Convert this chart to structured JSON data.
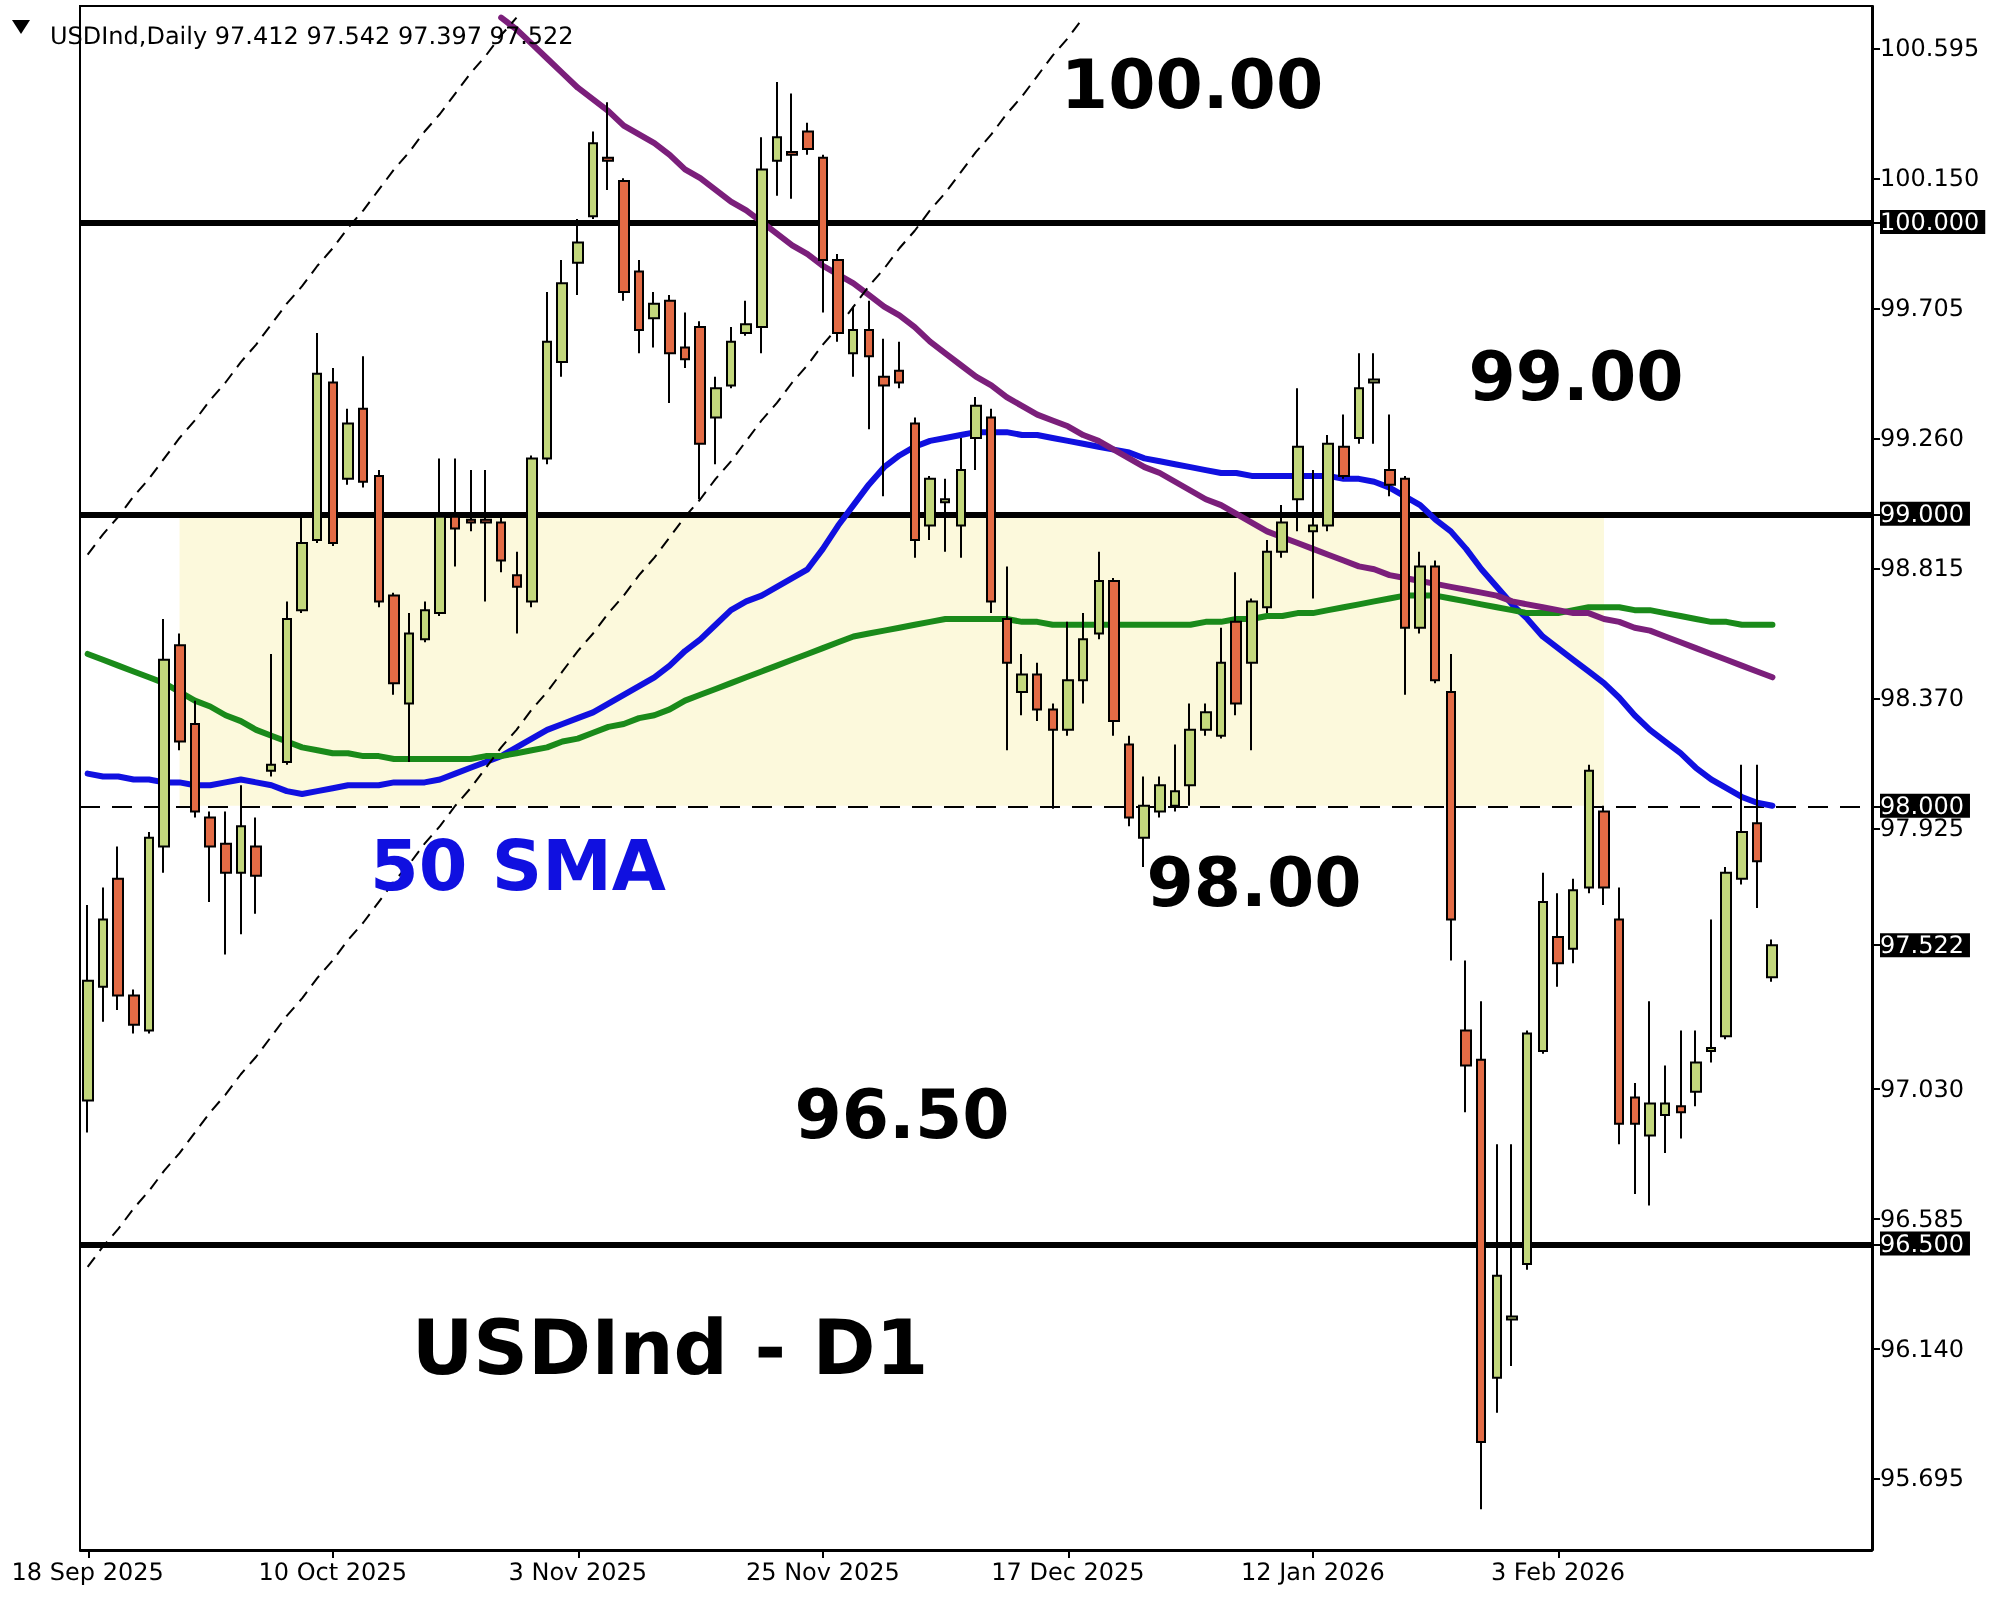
{
  "chart_data": {
    "type": "candlestick",
    "title": "USDInd,Daily 97.412 97.542 97.397 97.522",
    "categories": [
      "18 Sep 2025",
      null,
      null,
      null,
      null,
      null,
      null,
      null,
      null,
      null,
      null,
      null,
      null,
      null,
      null,
      null,
      "10 Oct 2025",
      null,
      null,
      null,
      null,
      null,
      null,
      null,
      null,
      null,
      null,
      null,
      null,
      null,
      null,
      null,
      "3 Nov 2025",
      null,
      null,
      null,
      null,
      null,
      null,
      null,
      null,
      null,
      null,
      null,
      null,
      null,
      null,
      null,
      "25 Nov 2025",
      null,
      null,
      null,
      null,
      null,
      null,
      null,
      null,
      null,
      null,
      null,
      null,
      null,
      null,
      null,
      "17 Dec 2025",
      null,
      null,
      null,
      null,
      null,
      null,
      null,
      null,
      null,
      null,
      null,
      null,
      null,
      null,
      null,
      "12 Jan 2026",
      null,
      null,
      null,
      null,
      null,
      null,
      null,
      null,
      null,
      null,
      null,
      null,
      null,
      null,
      null,
      "3 Feb 2026",
      null,
      null,
      null,
      null,
      null,
      null,
      null,
      null,
      null,
      null,
      null,
      null,
      null,
      null
    ],
    "ohlc": [
      [
        96.99,
        97.66,
        96.88,
        97.4
      ],
      [
        97.38,
        97.72,
        97.26,
        97.61
      ],
      [
        97.75,
        97.86,
        97.3,
        97.35
      ],
      [
        97.35,
        97.37,
        97.22,
        97.25
      ],
      [
        97.23,
        97.91,
        97.22,
        97.89
      ],
      [
        97.86,
        98.64,
        97.77,
        98.5
      ],
      [
        98.55,
        98.59,
        98.19,
        98.22
      ],
      [
        98.28,
        98.36,
        97.96,
        97.98
      ],
      [
        97.96,
        97.98,
        97.67,
        97.86
      ],
      [
        97.87,
        97.98,
        97.49,
        97.77
      ],
      [
        97.77,
        98.07,
        97.56,
        97.93
      ],
      [
        97.86,
        97.96,
        97.63,
        97.76
      ],
      [
        98.12,
        98.52,
        98.1,
        98.14
      ],
      [
        98.15,
        98.7,
        98.14,
        98.64
      ],
      [
        98.67,
        98.99,
        98.66,
        98.9
      ],
      [
        98.91,
        99.62,
        98.9,
        99.48
      ],
      [
        99.45,
        99.5,
        98.89,
        98.9
      ],
      [
        99.12,
        99.36,
        99.1,
        99.31
      ],
      [
        99.36,
        99.54,
        99.09,
        99.11
      ],
      [
        99.13,
        99.15,
        98.68,
        98.7
      ],
      [
        98.72,
        98.73,
        98.38,
        98.42
      ],
      [
        98.35,
        98.66,
        98.15,
        98.59
      ],
      [
        98.57,
        98.7,
        98.56,
        98.67
      ],
      [
        98.66,
        99.19,
        98.65,
        98.99
      ],
      [
        98.99,
        99.19,
        98.82,
        98.95
      ],
      [
        98.98,
        99.15,
        98.94,
        98.97
      ],
      [
        98.98,
        99.15,
        98.7,
        98.97
      ],
      [
        98.97,
        98.99,
        98.8,
        98.84
      ],
      [
        98.79,
        98.87,
        98.59,
        98.75
      ],
      [
        98.7,
        99.2,
        98.68,
        99.19
      ],
      [
        99.19,
        99.76,
        99.17,
        99.59
      ],
      [
        99.52,
        99.87,
        99.47,
        99.79
      ],
      [
        99.86,
        100.01,
        99.75,
        99.93
      ],
      [
        100.02,
        100.31,
        100.01,
        100.27
      ],
      [
        100.22,
        100.41,
        100.11,
        100.21
      ],
      [
        100.14,
        100.15,
        99.73,
        99.76
      ],
      [
        99.83,
        99.87,
        99.55,
        99.63
      ],
      [
        99.67,
        99.76,
        99.57,
        99.72
      ],
      [
        99.73,
        99.75,
        99.38,
        99.55
      ],
      [
        99.57,
        99.69,
        99.5,
        99.53
      ],
      [
        99.64,
        99.66,
        99.05,
        99.24
      ],
      [
        99.33,
        99.47,
        99.17,
        99.43
      ],
      [
        99.44,
        99.64,
        99.43,
        99.59
      ],
      [
        99.62,
        99.73,
        99.61,
        99.65
      ],
      [
        99.64,
        100.29,
        99.55,
        100.18
      ],
      [
        100.21,
        100.48,
        100.09,
        100.29
      ],
      [
        100.24,
        100.44,
        100.08,
        100.23
      ],
      [
        100.31,
        100.34,
        100.23,
        100.25
      ],
      [
        100.22,
        100.23,
        99.69,
        99.87
      ],
      [
        99.87,
        99.89,
        99.59,
        99.62
      ],
      [
        99.55,
        99.71,
        99.47,
        99.63
      ],
      [
        99.63,
        99.73,
        99.29,
        99.54
      ],
      [
        99.47,
        99.6,
        99.06,
        99.44
      ],
      [
        99.49,
        99.59,
        99.43,
        99.45
      ],
      [
        99.31,
        99.33,
        98.85,
        98.91
      ],
      [
        98.96,
        99.13,
        98.91,
        99.12
      ],
      [
        99.04,
        99.12,
        98.87,
        99.05
      ],
      [
        98.96,
        99.26,
        98.85,
        99.15
      ],
      [
        99.26,
        99.4,
        99.15,
        99.37
      ],
      [
        99.33,
        99.36,
        98.66,
        98.7
      ],
      [
        98.64,
        98.82,
        98.19,
        98.49
      ],
      [
        98.39,
        98.52,
        98.31,
        98.45
      ],
      [
        98.45,
        98.49,
        98.29,
        98.33
      ],
      [
        98.33,
        98.35,
        97.99,
        98.26
      ],
      [
        98.26,
        98.63,
        98.24,
        98.43
      ],
      [
        98.43,
        98.66,
        98.35,
        98.57
      ],
      [
        98.59,
        98.87,
        98.57,
        98.77
      ],
      [
        98.77,
        98.78,
        98.24,
        98.29
      ],
      [
        98.21,
        98.24,
        97.93,
        97.96
      ],
      [
        97.89,
        98.1,
        97.79,
        98.0
      ],
      [
        97.98,
        98.1,
        97.96,
        98.07
      ],
      [
        98.0,
        98.21,
        97.98,
        98.05
      ],
      [
        98.07,
        98.35,
        98.0,
        98.26
      ],
      [
        98.26,
        98.35,
        98.24,
        98.32
      ],
      [
        98.24,
        98.61,
        98.23,
        98.49
      ],
      [
        98.63,
        98.8,
        98.31,
        98.35
      ],
      [
        98.49,
        98.71,
        98.19,
        98.7
      ],
      [
        98.68,
        98.91,
        98.66,
        98.87
      ],
      [
        98.87,
        99.03,
        98.85,
        98.97
      ],
      [
        99.05,
        99.43,
        98.94,
        99.23
      ],
      [
        98.94,
        99.15,
        98.71,
        98.96
      ],
      [
        98.96,
        99.27,
        98.94,
        99.24
      ],
      [
        99.23,
        99.34,
        99.12,
        99.13
      ],
      [
        99.26,
        99.55,
        99.24,
        99.43
      ],
      [
        99.45,
        99.55,
        99.24,
        99.46
      ],
      [
        99.15,
        99.34,
        99.06,
        99.1
      ],
      [
        99.12,
        99.13,
        98.38,
        98.61
      ],
      [
        98.61,
        98.87,
        98.59,
        98.82
      ],
      [
        98.82,
        98.84,
        98.42,
        98.43
      ],
      [
        98.39,
        98.52,
        97.47,
        97.61
      ],
      [
        97.23,
        97.47,
        96.95,
        97.11
      ],
      [
        97.13,
        97.33,
        95.59,
        95.82
      ],
      [
        96.04,
        96.84,
        95.92,
        96.39
      ],
      [
        96.24,
        96.84,
        96.08,
        96.25
      ],
      [
        96.43,
        97.23,
        96.41,
        97.22
      ],
      [
        97.16,
        97.77,
        97.15,
        97.67
      ],
      [
        97.55,
        97.7,
        97.38,
        97.46
      ],
      [
        97.51,
        97.75,
        97.46,
        97.71
      ],
      [
        97.72,
        98.14,
        97.7,
        98.12
      ],
      [
        97.98,
        98.0,
        97.66,
        97.72
      ],
      [
        97.61,
        97.72,
        96.84,
        96.91
      ],
      [
        97.0,
        97.05,
        96.67,
        96.91
      ],
      [
        96.87,
        97.33,
        96.63,
        96.98
      ],
      [
        96.94,
        97.11,
        96.81,
        96.98
      ],
      [
        96.97,
        97.23,
        96.86,
        96.95
      ],
      [
        97.02,
        97.23,
        96.97,
        97.12
      ],
      [
        97.16,
        97.61,
        97.12,
        97.17
      ],
      [
        97.21,
        97.79,
        97.2,
        97.77
      ],
      [
        97.75,
        98.14,
        97.73,
        97.91
      ],
      [
        97.94,
        98.14,
        97.65,
        97.81
      ],
      [
        97.412,
        97.542,
        97.397,
        97.522
      ]
    ],
    "series": [
      {
        "type": "line",
        "name": "50 SMA",
        "color": "#1010e0",
        "values": [
          98.11,
          98.1,
          98.1,
          98.09,
          98.09,
          98.08,
          98.08,
          98.07,
          98.07,
          98.08,
          98.09,
          98.08,
          98.07,
          98.05,
          98.04,
          98.05,
          98.06,
          98.07,
          98.07,
          98.07,
          98.08,
          98.08,
          98.08,
          98.09,
          98.11,
          98.13,
          98.15,
          98.17,
          98.2,
          98.23,
          98.26,
          98.28,
          98.3,
          98.32,
          98.35,
          98.38,
          98.41,
          98.44,
          98.48,
          98.53,
          98.57,
          98.62,
          98.67,
          98.7,
          98.72,
          98.75,
          98.78,
          98.81,
          98.88,
          98.96,
          99.03,
          99.1,
          99.16,
          99.2,
          99.23,
          99.25,
          99.26,
          99.27,
          99.28,
          99.28,
          99.28,
          99.27,
          99.27,
          99.26,
          99.25,
          99.24,
          99.23,
          99.22,
          99.21,
          99.19,
          99.18,
          99.17,
          99.16,
          99.15,
          99.14,
          99.14,
          99.13,
          99.13,
          99.13,
          99.13,
          99.13,
          99.13,
          99.12,
          99.12,
          99.11,
          99.09,
          99.06,
          99.03,
          98.98,
          98.94,
          98.88,
          98.81,
          98.75,
          98.69,
          98.64,
          98.58,
          98.54,
          98.5,
          98.46,
          98.42,
          98.37,
          98.31,
          98.26,
          98.22,
          98.18,
          98.13,
          98.09,
          98.06,
          98.03,
          98.01,
          98.0
        ]
      },
      {
        "type": "line",
        "color": "#1a8a1a",
        "values": [
          98.52,
          98.5,
          98.48,
          98.46,
          98.44,
          98.42,
          98.39,
          98.36,
          98.34,
          98.31,
          98.29,
          98.26,
          98.24,
          98.22,
          98.2,
          98.19,
          98.18,
          98.18,
          98.17,
          98.17,
          98.16,
          98.16,
          98.16,
          98.16,
          98.16,
          98.16,
          98.17,
          98.17,
          98.18,
          98.19,
          98.2,
          98.22,
          98.23,
          98.25,
          98.27,
          98.28,
          98.3,
          98.31,
          98.33,
          98.36,
          98.38,
          98.4,
          98.42,
          98.44,
          98.46,
          98.48,
          98.5,
          98.52,
          98.54,
          98.56,
          98.58,
          98.59,
          98.6,
          98.61,
          98.62,
          98.63,
          98.64,
          98.64,
          98.64,
          98.64,
          98.64,
          98.63,
          98.63,
          98.62,
          98.62,
          98.62,
          98.62,
          98.62,
          98.62,
          98.62,
          98.62,
          98.62,
          98.62,
          98.63,
          98.63,
          98.64,
          98.64,
          98.65,
          98.65,
          98.66,
          98.66,
          98.67,
          98.68,
          98.69,
          98.7,
          98.71,
          98.72,
          98.72,
          98.72,
          98.71,
          98.7,
          98.69,
          98.68,
          98.67,
          98.66,
          98.66,
          98.66,
          98.67,
          98.68,
          98.68,
          98.68,
          98.67,
          98.67,
          98.66,
          98.65,
          98.64,
          98.63,
          98.63,
          98.62,
          98.62,
          98.62
        ]
      },
      {
        "type": "line",
        "color": "#7b1f7b",
        "values": [
          null,
          null,
          null,
          null,
          null,
          null,
          null,
          null,
          null,
          null,
          null,
          null,
          null,
          null,
          null,
          null,
          null,
          null,
          null,
          null,
          null,
          null,
          null,
          null,
          null,
          null,
          null,
          100.7,
          100.66,
          100.61,
          100.56,
          100.51,
          100.46,
          100.42,
          100.38,
          100.33,
          100.3,
          100.27,
          100.23,
          100.18,
          100.15,
          100.11,
          100.07,
          100.04,
          100.0,
          99.96,
          99.92,
          99.89,
          99.85,
          99.82,
          99.79,
          99.75,
          99.71,
          99.68,
          99.64,
          99.59,
          99.55,
          99.51,
          99.47,
          99.44,
          99.4,
          99.37,
          99.34,
          99.32,
          99.3,
          99.27,
          99.25,
          99.22,
          99.19,
          99.16,
          99.14,
          99.11,
          99.08,
          99.05,
          99.03,
          99.0,
          98.97,
          98.94,
          98.92,
          98.9,
          98.88,
          98.86,
          98.84,
          98.82,
          98.81,
          98.79,
          98.78,
          98.77,
          98.76,
          98.75,
          98.74,
          98.73,
          98.72,
          98.7,
          98.69,
          98.68,
          98.67,
          98.66,
          98.66,
          98.64,
          98.63,
          98.61,
          98.6,
          98.58,
          98.56,
          98.54,
          98.52,
          98.5,
          98.48,
          98.46,
          98.44
        ]
      },
      {
        "type": "line",
        "color": "#000000",
        "line_style": "dashed",
        "values": [
          98.86,
          98.93,
          98.99,
          99.06,
          99.12,
          99.19,
          99.26,
          99.32,
          99.39,
          99.45,
          99.52,
          99.58,
          99.65,
          99.72,
          99.78,
          99.85,
          99.91,
          99.98,
          100.04,
          100.11,
          100.18,
          100.24,
          100.31,
          100.37,
          100.44,
          100.51,
          100.57,
          100.64,
          100.7,
          null,
          null,
          null,
          null,
          null,
          null,
          null,
          null,
          null,
          null,
          null,
          null,
          null,
          null,
          null,
          null,
          null,
          null,
          null,
          null,
          null,
          null,
          null,
          null,
          null,
          null,
          null,
          null,
          null,
          null,
          null,
          null,
          null,
          null,
          null,
          null,
          null,
          null,
          null,
          null,
          null,
          null,
          null,
          null,
          null,
          null,
          null,
          null,
          null,
          null,
          null,
          null,
          null,
          null,
          null,
          null,
          null,
          null,
          null,
          null,
          null,
          null,
          null,
          null,
          null,
          null,
          null,
          null,
          null,
          null,
          null,
          null,
          null,
          null,
          null,
          null,
          null,
          null,
          null,
          null,
          null,
          null
        ]
      },
      {
        "type": "line",
        "color": "#000000",
        "line_style": "dashed",
        "values": [
          96.42,
          96.49,
          96.55,
          96.62,
          96.68,
          96.75,
          96.81,
          96.88,
          96.95,
          97.01,
          97.08,
          97.14,
          97.21,
          97.28,
          97.34,
          97.41,
          97.47,
          97.54,
          97.6,
          97.67,
          97.74,
          97.8,
          97.87,
          97.93,
          98.0,
          98.06,
          98.13,
          98.2,
          98.26,
          98.33,
          98.39,
          98.46,
          98.53,
          98.59,
          98.66,
          98.72,
          98.79,
          98.85,
          98.92,
          98.99,
          99.05,
          99.12,
          99.18,
          99.25,
          99.32,
          99.38,
          99.45,
          99.51,
          99.58,
          99.64,
          99.71,
          99.78,
          99.84,
          99.91,
          99.97,
          100.04,
          100.1,
          100.17,
          100.24,
          100.3,
          100.37,
          100.43,
          100.5,
          100.57,
          100.63,
          100.7,
          null,
          null,
          null,
          null,
          null,
          null,
          null,
          null,
          null,
          null,
          null,
          null,
          null,
          null,
          null,
          null,
          null,
          null,
          null,
          null,
          null,
          null,
          null,
          null,
          null,
          null,
          null,
          null,
          null,
          null,
          null,
          null,
          null,
          null,
          null,
          null,
          null,
          null,
          null,
          null,
          null,
          null,
          null,
          null,
          null
        ]
      }
    ],
    "ylim": [
      95.45,
      100.74
    ],
    "yticks": [
      95.695,
      {
        "value": 96.14,
        "label": "96.140"
      },
      {
        "value": 96.5,
        "label": "96.500"
      },
      96.585,
      {
        "value": 97.03,
        "label": "97.030"
      },
      97.522,
      97.925,
      {
        "value": 98,
        "label": "98.000"
      },
      {
        "value": 98.37,
        "label": "98.370"
      },
      98.815,
      {
        "value": 99,
        "label": "99.000"
      },
      {
        "value": 99.26,
        "label": "99.260"
      },
      99.705,
      {
        "value": 100,
        "label": "100.000"
      },
      {
        "value": 100.15,
        "label": "100.150"
      },
      100.595
    ],
    "ref_lines": [
      {
        "axis": "y",
        "value": 100,
        "label": "100.00",
        "color": "#000000",
        "line_style": "solid"
      },
      {
        "axis": "y",
        "value": 99,
        "label": "99.00",
        "color": "#000000",
        "line_style": "solid"
      },
      {
        "axis": "y",
        "value": 98,
        "label": "98.00",
        "color": "#000000",
        "line_style": "dashed"
      },
      {
        "axis": "y",
        "value": 96.5,
        "label": "96.50",
        "color": "#000000",
        "line_style": "solid"
      }
    ],
    "bands": [
      {
        "axis": "y",
        "from": 98,
        "to": 99,
        "color": "#fcf9dc"
      }
    ],
    "annotations": [
      "USDInd - D1"
    ],
    "grid": false,
    "legend": false,
    "marker": "none"
  }
}
